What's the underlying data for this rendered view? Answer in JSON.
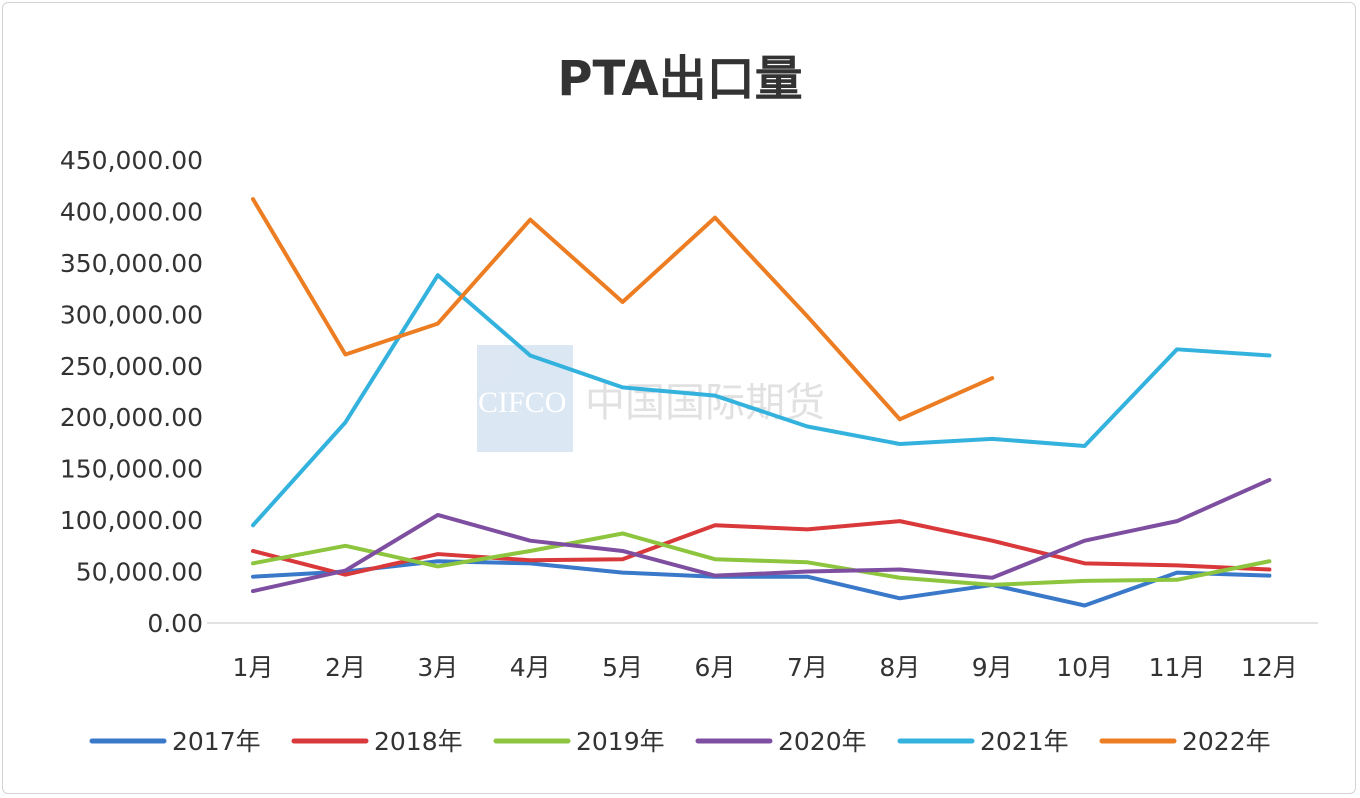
{
  "chart_data": {
    "type": "line",
    "title": "PTA出口量",
    "xlabel": "",
    "ylabel": "",
    "ylim": [
      0,
      450000
    ],
    "y_ticks": [
      "0.00",
      "50,000.00",
      "100,000.00",
      "150,000.00",
      "200,000.00",
      "250,000.00",
      "300,000.00",
      "350,000.00",
      "400,000.00",
      "450,000.00"
    ],
    "categories": [
      "1月",
      "2月",
      "3月",
      "4月",
      "5月",
      "6月",
      "7月",
      "8月",
      "9月",
      "10月",
      "11月",
      "12月"
    ],
    "grid": false,
    "legend_position": "bottom",
    "series": [
      {
        "name": "2017年",
        "color": "#3A78C9",
        "values": [
          45000,
          50000,
          60000,
          58000,
          49000,
          45000,
          45000,
          24000,
          37000,
          17000,
          49000,
          46000
        ]
      },
      {
        "name": "2018年",
        "color": "#D9393A",
        "values": [
          70000,
          47000,
          67000,
          61000,
          62000,
          95000,
          91000,
          99000,
          80000,
          58000,
          56000,
          52000
        ]
      },
      {
        "name": "2019年",
        "color": "#8DC53E",
        "values": [
          58000,
          75000,
          55000,
          70000,
          87000,
          62000,
          59000,
          44000,
          37000,
          41000,
          42000,
          60000
        ]
      },
      {
        "name": "2020年",
        "color": "#7E4FA0",
        "values": [
          31000,
          51000,
          105000,
          80000,
          70000,
          46000,
          50000,
          52000,
          44000,
          80000,
          99000,
          139000
        ]
      },
      {
        "name": "2021年",
        "color": "#34B2DE",
        "values": [
          95000,
          195000,
          338000,
          260000,
          229000,
          221000,
          191000,
          174000,
          179000,
          172000,
          266000,
          260000
        ]
      },
      {
        "name": "2022年",
        "color": "#ED7D22",
        "values": [
          412000,
          261000,
          291000,
          392000,
          312000,
          394000,
          298000,
          198000,
          238000,
          null,
          null,
          null
        ]
      }
    ]
  },
  "watermark": {
    "text": "CIFCO 中国国际期货"
  }
}
